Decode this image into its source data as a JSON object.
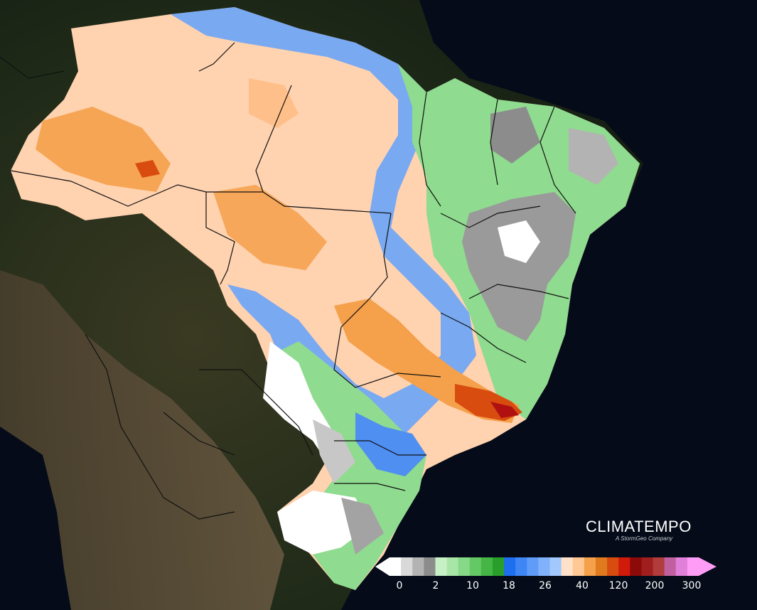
{
  "brand": {
    "name": "CLIMATEMPO",
    "tagline": "A StormGeo Company"
  },
  "map": {
    "subject": "Precipitation accumulation map of Brazil",
    "background": "satellite imagery of South America"
  },
  "legend": {
    "tick_labels": [
      "0",
      "2",
      "10",
      "18",
      "26",
      "40",
      "120",
      "200",
      "300"
    ],
    "colors": [
      "#ffffff",
      "#d9d9d9",
      "#b3b3b3",
      "#8c8c8c",
      "#c7f0c7",
      "#a8e6a8",
      "#86d986",
      "#64c864",
      "#45b545",
      "#2a9e2a",
      "#1e6ff0",
      "#3f86f5",
      "#5f9cf8",
      "#80b2fb",
      "#a3c8fd",
      "#ffe0c8",
      "#ffc895",
      "#f5a04a",
      "#e07a1e",
      "#d84c10",
      "#d01a0a",
      "#8c0a0a",
      "#a01e1e",
      "#b03c3c",
      "#c060a0",
      "#e080d8",
      "#ff9cf5"
    ]
  }
}
